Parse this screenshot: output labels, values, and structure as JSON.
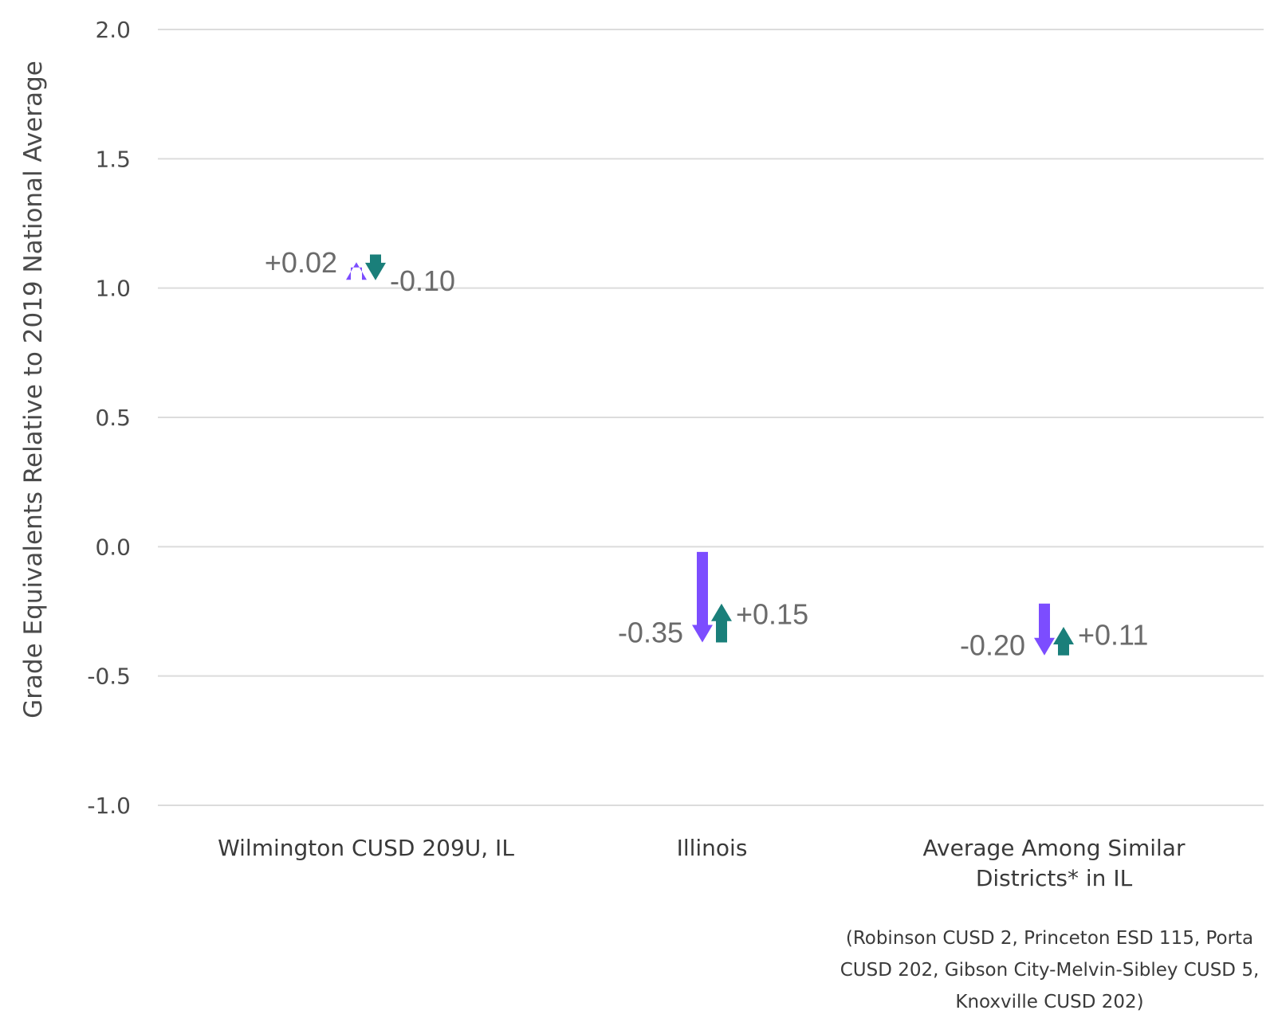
{
  "chart_data": {
    "type": "arrow",
    "ylabel": "Grade Equivalents Relative to 2019 National Average",
    "ylim": [
      -1.0,
      2.0
    ],
    "yticks": [
      "2.0",
      "1.5",
      "1.0",
      "0.5",
      "0.0",
      "-0.5",
      "-1.0"
    ],
    "grid": true,
    "categories": [
      {
        "label_lines": [
          "Wilmington CUSD 209U, IL"
        ]
      },
      {
        "label_lines": [
          "Illinois"
        ]
      },
      {
        "label_lines": [
          "Average Among Similar",
          "Districts* in IL"
        ]
      }
    ],
    "series": [
      {
        "color": "#7c4dff",
        "points": [
          {
            "start": 1.08,
            "end": 1.1,
            "label": "+0.02"
          },
          {
            "start": -0.02,
            "end": -0.37,
            "label": "-0.35"
          },
          {
            "start": -0.22,
            "end": -0.42,
            "label": "-0.20"
          }
        ]
      },
      {
        "color": "#1a7f7a",
        "points": [
          {
            "start": 1.13,
            "end": 1.03,
            "label": "-0.10"
          },
          {
            "start": -0.37,
            "end": -0.22,
            "label": "+0.15"
          },
          {
            "start": -0.42,
            "end": -0.31,
            "label": "+0.11"
          }
        ]
      }
    ],
    "footnote": "(Robinson CUSD 2, Princeton ESD 115, Porta CUSD 202, Gibson City-Melvin-Sibley CUSD 5, Knoxville CUSD 202)"
  }
}
